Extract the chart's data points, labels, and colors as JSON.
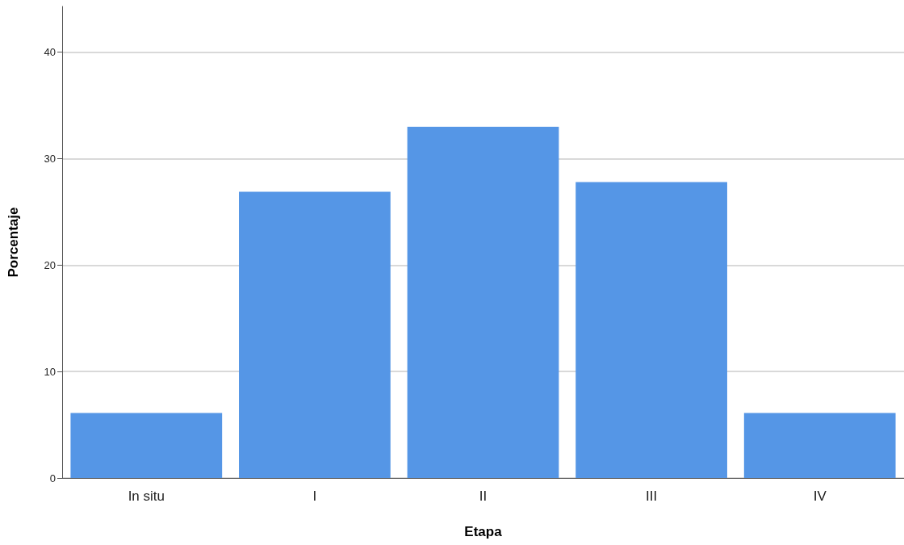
{
  "chart_data": {
    "type": "bar",
    "xlabel": "Etapa",
    "ylabel": "Porcentaje",
    "categories": [
      "In situ",
      "I",
      "II",
      "III",
      "IV"
    ],
    "values": [
      6.1,
      26.9,
      33.0,
      27.8,
      6.1
    ],
    "color": "#5596e6",
    "ylim": [
      0,
      44.3
    ],
    "yticks": [
      0,
      10,
      20,
      30,
      40
    ],
    "grid": "y"
  }
}
